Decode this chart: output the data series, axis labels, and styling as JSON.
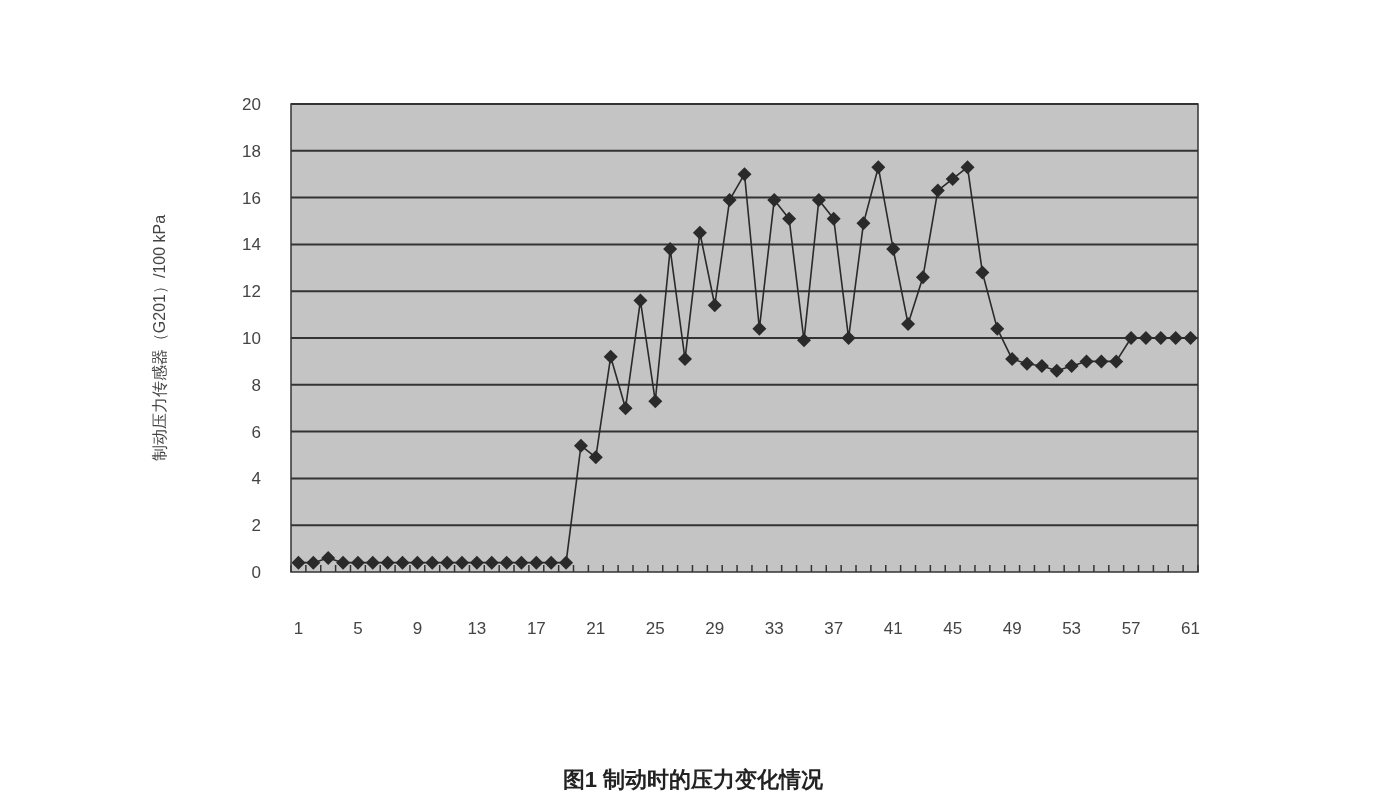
{
  "chart_data": {
    "type": "line",
    "title": "图1 制动时的压力变化情况",
    "ylabel": "制动压力传感器（G201）/100 kPa",
    "categories": [
      "1",
      null,
      null,
      null,
      "5",
      null,
      null,
      null,
      "9",
      null,
      null,
      null,
      "13",
      null,
      null,
      null,
      "17",
      null,
      null,
      null,
      "21",
      null,
      null,
      null,
      "25",
      null,
      null,
      null,
      "29",
      null,
      null,
      null,
      "33",
      null,
      null,
      null,
      "37",
      null,
      null,
      null,
      "41",
      null,
      null,
      null,
      "45",
      null,
      null,
      null,
      "49",
      null,
      null,
      null,
      "53",
      null,
      null,
      null,
      "57",
      null,
      null,
      null,
      "61"
    ],
    "series": [
      {
        "color": "#2a2a2a",
        "values": [
          0.4,
          0.4,
          0.6,
          0.4,
          0.4,
          0.4,
          0.4,
          0.4,
          0.4,
          0.4,
          0.4,
          0.4,
          0.4,
          0.4,
          0.4,
          0.4,
          0.4,
          0.4,
          0.4,
          5.4,
          4.9,
          9.2,
          7.0,
          11.6,
          7.3,
          13.8,
          9.1,
          14.5,
          11.4,
          15.9,
          17.0,
          10.4,
          15.9,
          15.1,
          9.9,
          15.9,
          15.1,
          10.0,
          14.9,
          17.3,
          13.8,
          10.6,
          12.6,
          16.3,
          16.8,
          17.3,
          12.8,
          10.4,
          9.1,
          8.9,
          8.8,
          8.6,
          8.8,
          9.0,
          9.0,
          9.0,
          10.0,
          10.0,
          10.0,
          10.0,
          10.0
        ]
      }
    ],
    "ylim": [
      0,
      20
    ],
    "yticks": [
      0,
      2,
      4,
      6,
      8,
      10,
      12,
      14,
      16,
      18,
      20
    ],
    "grid": "y",
    "marker": "diamond",
    "line_style": "solid"
  }
}
